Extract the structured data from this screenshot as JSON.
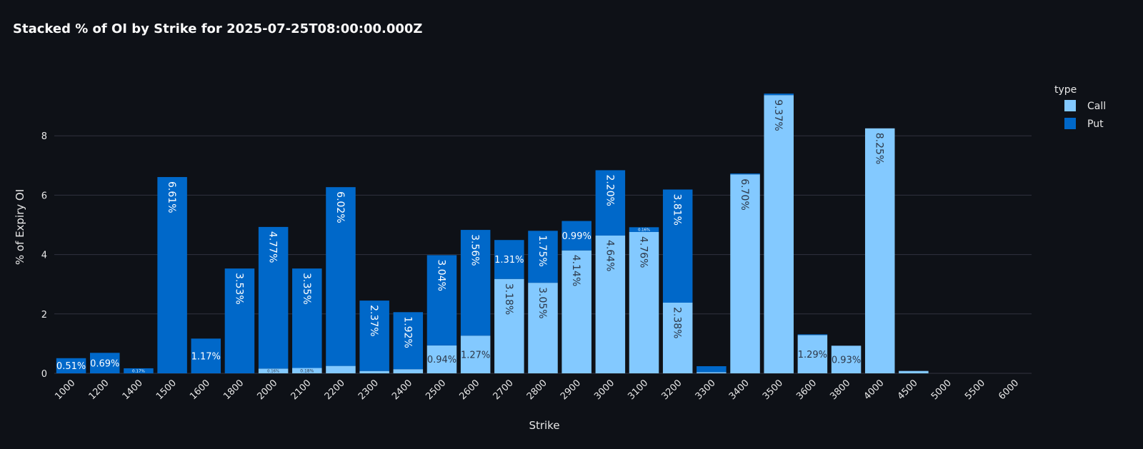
{
  "chart_data": {
    "type": "bar",
    "stacked": true,
    "title": "Stacked % of OI by Strike for 2025-07-25T08:00:00.000Z",
    "xlabel": "Strike",
    "ylabel": "% of Expiry OI",
    "ylim": [
      0,
      10
    ],
    "yticks": [
      0,
      2,
      4,
      6,
      8
    ],
    "grid": true,
    "legend": {
      "title": "type",
      "position": "right"
    },
    "categories": [
      "1000",
      "1200",
      "1400",
      "1500",
      "1600",
      "1800",
      "2000",
      "2100",
      "2200",
      "2300",
      "2400",
      "2500",
      "2600",
      "2700",
      "2800",
      "2900",
      "3000",
      "3100",
      "3200",
      "3300",
      "3400",
      "3500",
      "3600",
      "3800",
      "4000",
      "4500",
      "5000",
      "5500",
      "6000"
    ],
    "series": [
      {
        "name": "Call",
        "color": "#83c9ff",
        "label_color": "#2d3848",
        "values": [
          0,
          0,
          0,
          0,
          0,
          0,
          0.16,
          0.18,
          0.25,
          0.08,
          0.14,
          0.94,
          1.27,
          3.18,
          3.05,
          4.14,
          4.64,
          4.76,
          2.38,
          0.04,
          6.7,
          9.37,
          1.29,
          0.93,
          8.25,
          0.08,
          0,
          0,
          0
        ],
        "labels": [
          "",
          "",
          "",
          "",
          "",
          "",
          "0.16%",
          "0.18%",
          "",
          "",
          "0.14%",
          "0.94%",
          "1.27%",
          "3.18%",
          "3.05%",
          "4.14%",
          "4.64%",
          "4.76%",
          "2.38%",
          "",
          "6.70%",
          "9.37%",
          "1.29%",
          "0.93%",
          "8.25%",
          "",
          "",
          "",
          ""
        ]
      },
      {
        "name": "Put",
        "color": "#0068c9",
        "label_color": "#ffffff",
        "values": [
          0.51,
          0.69,
          0.17,
          6.61,
          1.17,
          3.53,
          4.77,
          3.35,
          6.02,
          2.37,
          1.92,
          3.04,
          3.56,
          1.31,
          1.75,
          0.99,
          2.2,
          0.16,
          3.81,
          0.2,
          0.03,
          0.05,
          0.02,
          0,
          0,
          0,
          0,
          0,
          0
        ],
        "labels": [
          "0.51%",
          "0.69%",
          "0.17%",
          "6.61%",
          "1.17%",
          "3.53%",
          "4.77%",
          "3.35%",
          "6.02%",
          "2.37%",
          "1.92%",
          "3.04%",
          "3.56%",
          "1.31%",
          "1.75%",
          "0.99%",
          "2.20%",
          "0.16%",
          "3.81%",
          "",
          "",
          "",
          "",
          "",
          "",
          "",
          "",
          "",
          ""
        ]
      }
    ]
  }
}
